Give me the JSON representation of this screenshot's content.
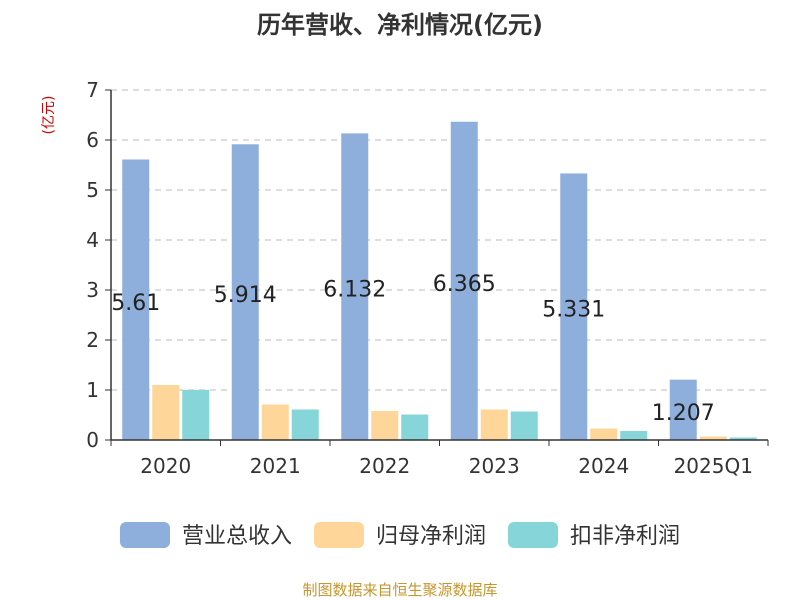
{
  "chart_data": {
    "type": "bar",
    "title": "历年营收、净利情况(亿元)",
    "unit_label": "(亿元)",
    "categories": [
      "2020",
      "2021",
      "2022",
      "2023",
      "2024",
      "2025Q1"
    ],
    "ylim": [
      0,
      7
    ],
    "yticks": [
      "0",
      "1",
      "2",
      "3",
      "4",
      "5",
      "6",
      "7"
    ],
    "grid": true,
    "legend_position": "bottom",
    "series": [
      {
        "name": "营业总收入",
        "color": "#8eaedb",
        "values": [
          5.61,
          5.914,
          6.132,
          6.365,
          5.331,
          1.207
        ],
        "labels": [
          "5.61",
          "5.914",
          "6.132",
          "6.365",
          "5.331",
          "1.207"
        ]
      },
      {
        "name": "归母净利润",
        "color": "#ffd69a",
        "values": [
          1.1,
          0.71,
          0.58,
          0.61,
          0.23,
          0.07
        ]
      },
      {
        "name": "扣非净利润",
        "color": "#86d5d8",
        "values": [
          1.0,
          0.61,
          0.51,
          0.57,
          0.18,
          0.05
        ]
      }
    ]
  },
  "source": "制图数据来自恒生聚源数据库"
}
